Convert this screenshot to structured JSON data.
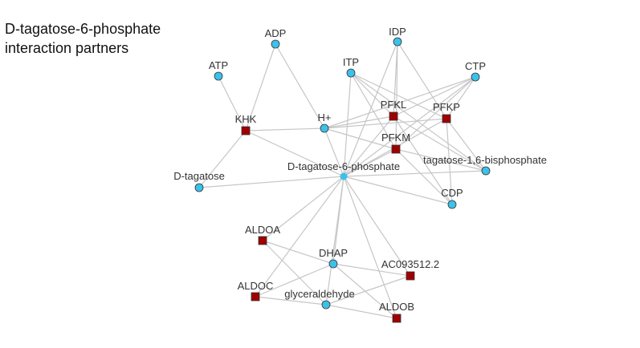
{
  "title_lines": [
    "D-tagatose-6-phosphate",
    "interaction partners"
  ],
  "colors": {
    "metabolite": "#3cc1ea",
    "protein": "#a00000",
    "edge": "#c6c6c6",
    "outline": "#333333"
  },
  "nodes": [
    {
      "id": "ADP",
      "label": "ADP",
      "kind": "metabolite"
    },
    {
      "id": "IDP",
      "label": "IDP",
      "kind": "metabolite"
    },
    {
      "id": "ATP",
      "label": "ATP",
      "kind": "metabolite"
    },
    {
      "id": "ITP",
      "label": "ITP",
      "kind": "metabolite"
    },
    {
      "id": "CTP",
      "label": "CTP",
      "kind": "metabolite"
    },
    {
      "id": "PFKL",
      "label": "PFKL",
      "kind": "protein"
    },
    {
      "id": "PFKP",
      "label": "PFKP",
      "kind": "protein"
    },
    {
      "id": "KHK",
      "label": "KHK",
      "kind": "protein"
    },
    {
      "id": "H+",
      "label": "H+",
      "kind": "metabolite"
    },
    {
      "id": "PFKM",
      "label": "PFKM",
      "kind": "protein"
    },
    {
      "id": "T16BP",
      "label": "tagatose-1,6-bisphosphate",
      "kind": "metabolite"
    },
    {
      "id": "DT6P",
      "label": "D-tagatose-6-phosphate",
      "kind": "metabolite"
    },
    {
      "id": "DTAG",
      "label": "D-tagatose",
      "kind": "metabolite"
    },
    {
      "id": "CDP",
      "label": "CDP",
      "kind": "metabolite"
    },
    {
      "id": "ALDOA",
      "label": "ALDOA",
      "kind": "protein"
    },
    {
      "id": "DHAP",
      "label": "DHAP",
      "kind": "metabolite"
    },
    {
      "id": "AC093512",
      "label": "AC093512.2",
      "kind": "protein"
    },
    {
      "id": "ALDOC",
      "label": "ALDOC",
      "kind": "protein"
    },
    {
      "id": "GLYC",
      "label": "glyceraldehyde",
      "kind": "metabolite"
    },
    {
      "id": "ALDOB",
      "label": "ALDOB",
      "kind": "protein"
    }
  ],
  "edges": [
    [
      "ADP",
      "KHK"
    ],
    [
      "ADP",
      "H+"
    ],
    [
      "ATP",
      "KHK"
    ],
    [
      "KHK",
      "DTAG"
    ],
    [
      "KHK",
      "H+"
    ],
    [
      "KHK",
      "DT6P"
    ],
    [
      "IDP",
      "PFKL"
    ],
    [
      "IDP",
      "PFKP"
    ],
    [
      "IDP",
      "PFKM"
    ],
    [
      "IDP",
      "DT6P"
    ],
    [
      "ITP",
      "PFKL"
    ],
    [
      "ITP",
      "PFKP"
    ],
    [
      "ITP",
      "PFKM"
    ],
    [
      "ITP",
      "DT6P"
    ],
    [
      "ITP",
      "T16BP"
    ],
    [
      "CTP",
      "PFKL"
    ],
    [
      "CTP",
      "PFKP"
    ],
    [
      "CTP",
      "PFKM"
    ],
    [
      "CTP",
      "DT6P"
    ],
    [
      "CTP",
      "H+"
    ],
    [
      "H+",
      "PFKL"
    ],
    [
      "H+",
      "PFKP"
    ],
    [
      "H+",
      "PFKM"
    ],
    [
      "H+",
      "DT6P"
    ],
    [
      "PFKL",
      "DT6P"
    ],
    [
      "PFKP",
      "DT6P"
    ],
    [
      "PFKM",
      "DT6P"
    ],
    [
      "PFKL",
      "T16BP"
    ],
    [
      "PFKP",
      "T16BP"
    ],
    [
      "PFKM",
      "T16BP"
    ],
    [
      "PFKL",
      "CDP"
    ],
    [
      "PFKP",
      "CDP"
    ],
    [
      "PFKM",
      "CDP"
    ],
    [
      "DT6P",
      "T16BP"
    ],
    [
      "DT6P",
      "CDP"
    ],
    [
      "DT6P",
      "DTAG"
    ],
    [
      "DT6P",
      "ALDOA"
    ],
    [
      "DT6P",
      "DHAP"
    ],
    [
      "DT6P",
      "AC093512"
    ],
    [
      "DT6P",
      "ALDOC"
    ],
    [
      "DT6P",
      "GLYC"
    ],
    [
      "DT6P",
      "ALDOB"
    ],
    [
      "ALDOA",
      "DHAP"
    ],
    [
      "ALDOA",
      "GLYC"
    ],
    [
      "DHAP",
      "AC093512"
    ],
    [
      "DHAP",
      "ALDOC"
    ],
    [
      "DHAP",
      "ALDOB"
    ],
    [
      "AC093512",
      "GLYC"
    ],
    [
      "ALDOC",
      "GLYC"
    ],
    [
      "GLYC",
      "ALDOB"
    ]
  ]
}
